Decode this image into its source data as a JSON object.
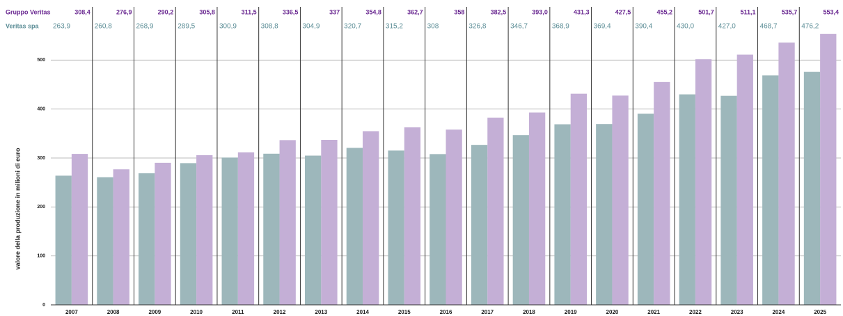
{
  "chart_data": {
    "type": "bar",
    "y_label": "valore della produzione in milioni di euro",
    "categories": [
      "2007",
      "2008",
      "2009",
      "2010",
      "2011",
      "2012",
      "2013",
      "2014",
      "2015",
      "2016",
      "2017",
      "2018",
      "2019",
      "2020",
      "2021",
      "2022",
      "2023",
      "2024",
      "2025"
    ],
    "series": [
      {
        "name": "Veritas spa",
        "color": "#9db7bb",
        "label_color": "#5b8d96",
        "values": [
          263.9,
          260.8,
          268.9,
          289.5,
          300.9,
          308.8,
          304.9,
          320.7,
          315.2,
          308,
          326.8,
          346.7,
          368.9,
          369.4,
          390.4,
          430.0,
          427.0,
          468.7,
          476.2
        ],
        "value_labels": [
          "263,9",
          "260,8",
          "268,9",
          "289,5",
          "300,9",
          "308,8",
          "304,9",
          "320,7",
          "315,2",
          "308",
          "326,8",
          "346,7",
          "368,9",
          "369,4",
          "390,4",
          "430,0",
          "427,0",
          "468,7",
          "476,2"
        ]
      },
      {
        "name": "Gruppo Veritas",
        "color": "#c4afd6",
        "label_color": "#6b2a92",
        "values": [
          308.4,
          276.9,
          290.2,
          305.8,
          311.5,
          336.5,
          337,
          354.8,
          362.7,
          358,
          382.5,
          393.0,
          431.3,
          427.5,
          455.2,
          501.7,
          511.1,
          535.7,
          553.4
        ],
        "value_labels": [
          "308,4",
          "276,9",
          "290,2",
          "305,8",
          "311,5",
          "336,5",
          "337",
          "354,8",
          "362,7",
          "358",
          "382,5",
          "393,0",
          "431,3",
          "427,5",
          "455,2",
          "501,7",
          "511,1",
          "535,7",
          "553,4"
        ]
      }
    ],
    "ylim": [
      0,
      600
    ],
    "yticks": [
      0,
      100,
      200,
      300,
      400,
      500
    ],
    "grid": true
  }
}
